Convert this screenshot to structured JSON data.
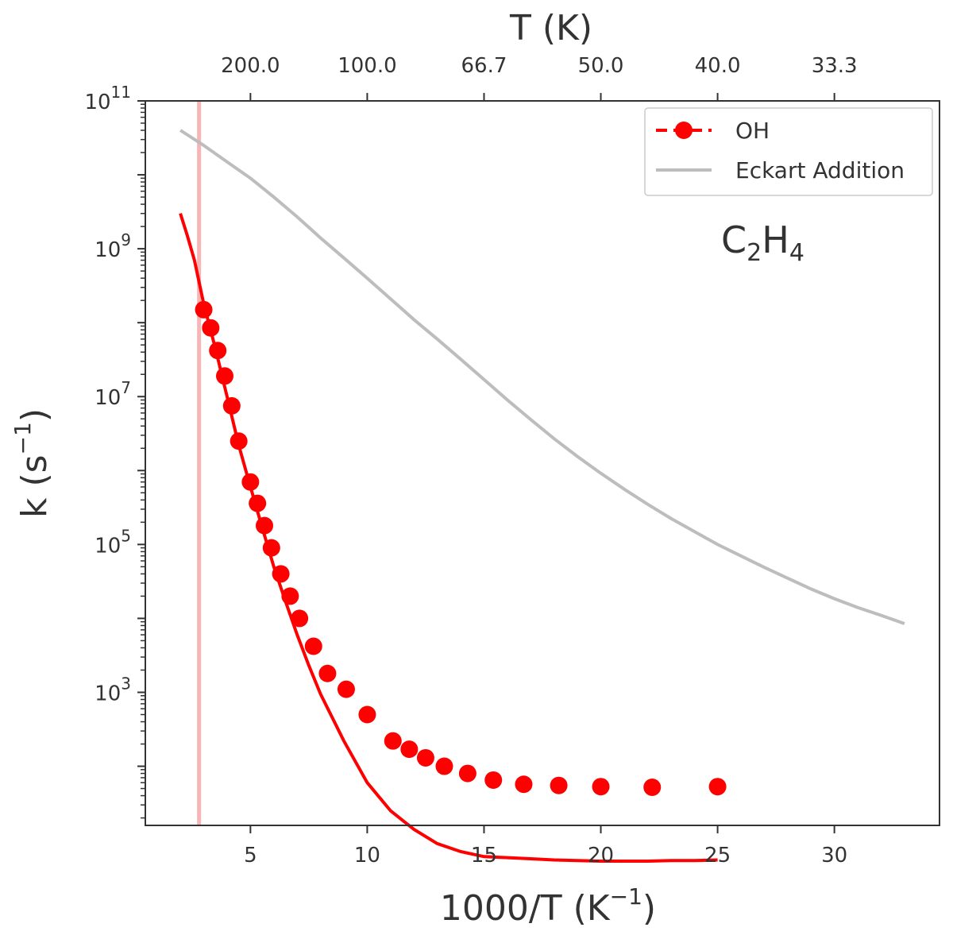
{
  "chart_data": {
    "type": "line",
    "xlabel": "1000/T (K",
    "xlabel_sup": "−1",
    "xlabel_close": ")",
    "ylabel": "k (s",
    "ylabel_sup": "−1",
    "ylabel_close": ")",
    "top_xlabel": "T (K)",
    "xlim": [
      0.5,
      34.5
    ],
    "ylim_log10": [
      1.2,
      11
    ],
    "y_scale": "log",
    "x_ticks": [
      5,
      10,
      15,
      20,
      25,
      30
    ],
    "x_tick_labels": [
      "5",
      "10",
      "15",
      "20",
      "25",
      "30"
    ],
    "top_ticks": [
      5,
      10,
      15,
      20,
      25,
      30
    ],
    "top_tick_labels": [
      "200.0",
      "100.0",
      "66.7",
      "50.0",
      "40.0",
      "33.3"
    ],
    "y_major_exponents": [
      3,
      5,
      7,
      9,
      11
    ],
    "y_tick_base": "10",
    "grid": false,
    "legend_position": "top-right",
    "annotation": {
      "text": "C",
      "sub1": "2",
      "mid": "H",
      "sub2": "4"
    },
    "vertical_line": {
      "x": 2.8,
      "color": "#f7b5b5"
    },
    "colors": {
      "oh": "#ff0000",
      "eckart": "#bdbdbd",
      "axes": "#333333"
    },
    "series": [
      {
        "name": "OH",
        "style": "line-with-markers",
        "color": "#ff0000",
        "curve_x": [
          2.0,
          2.3,
          2.6,
          3.0,
          3.5,
          4.0,
          4.5,
          5.0,
          5.5,
          6.0,
          6.5,
          7.0,
          7.5,
          8.0,
          9.0,
          10.0,
          11.0,
          12.0,
          13.0,
          14.0,
          15.0,
          16.0,
          17.0,
          18.0,
          19.0,
          20.0,
          21.0,
          22.0,
          23.0,
          24.0,
          25.0
        ],
        "curve_y": [
          3000000000,
          1500000000,
          700000000,
          180000000,
          45000000,
          10000000,
          2200000,
          600000,
          170000,
          50000,
          17000,
          6000,
          2300,
          950,
          220,
          60,
          25,
          14,
          9,
          7,
          6,
          5.8,
          5.6,
          5.4,
          5.3,
          5.2,
          5.2,
          5.2,
          5.3,
          5.3,
          5.4
        ],
        "markers_x": [
          3.0,
          3.3,
          3.6,
          3.9,
          4.2,
          4.5,
          5.0,
          5.3,
          5.6,
          5.9,
          6.3,
          6.7,
          7.1,
          7.7,
          8.3,
          9.1,
          10.0,
          11.1,
          11.8,
          12.5,
          13.3,
          14.3,
          15.4,
          16.7,
          18.2,
          20.0,
          22.2,
          25.0
        ],
        "markers_y": [
          150000000,
          85000000,
          42000000,
          19000000,
          7500000,
          2500000,
          700000,
          360000,
          180000,
          90000,
          40000,
          20000,
          10000,
          4200,
          1800,
          1100,
          500,
          220,
          170,
          130,
          100,
          80,
          65,
          57,
          55,
          53,
          52,
          53
        ]
      },
      {
        "name": "Eckart Addition",
        "style": "line",
        "color": "#bdbdbd",
        "x": [
          2.0,
          3.0,
          4.0,
          5.0,
          6.0,
          7.0,
          8.0,
          9.0,
          10.0,
          11.0,
          12.0,
          13.0,
          14.0,
          15.0,
          16.0,
          17.0,
          18.0,
          19.0,
          20.0,
          21.0,
          22.0,
          23.0,
          24.0,
          25.0,
          26.0,
          27.0,
          28.0,
          29.0,
          30.0,
          31.0,
          32.0,
          33.0
        ],
        "y": [
          40000000000,
          25000000000,
          15000000000,
          9000000000,
          5000000000,
          2700000000,
          1400000000,
          750000000,
          400000000,
          210000000,
          110000000,
          60000000,
          32000000,
          17000000,
          9000000,
          4900000,
          2700000,
          1550000,
          920000,
          560000,
          350000,
          225000,
          150000,
          100000,
          70000,
          49000,
          35000,
          25000,
          18500,
          14000,
          11000,
          8500
        ]
      }
    ]
  }
}
